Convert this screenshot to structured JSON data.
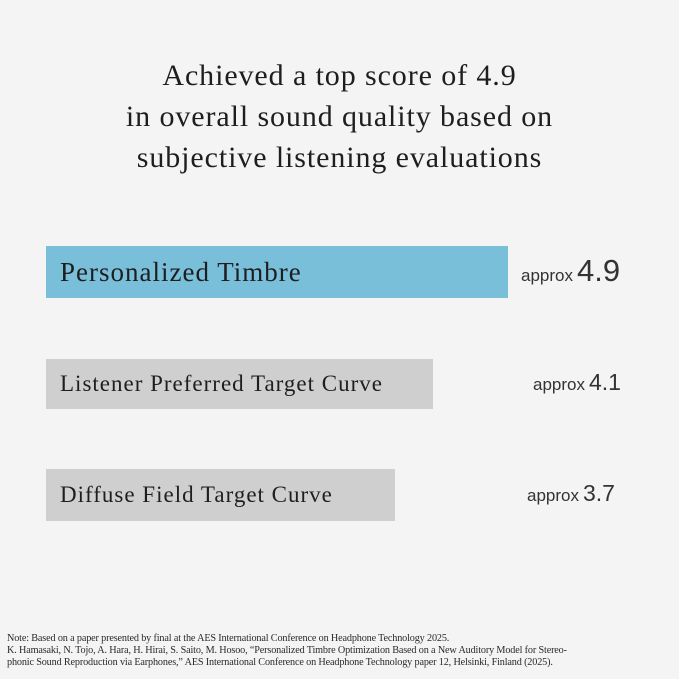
{
  "title_lines": [
    "Achieved a top score of 4.9",
    "in overall sound quality based on",
    "subjective listening evaluations"
  ],
  "chart_data": {
    "type": "bar",
    "orientation": "horizontal",
    "title": "Achieved a top score of 4.9 in overall sound quality based on subjective listening evaluations",
    "categories": [
      "Personalized Timbre",
      "Listener Preferred Target Curve",
      "Diffuse Field Target Curve"
    ],
    "values": [
      4.9,
      4.1,
      3.7
    ],
    "value_prefix": "approx",
    "value_labels": [
      "4.9",
      "4.1",
      "3.7"
    ],
    "bar_colors": [
      "#79bfda",
      "#cfcfcf",
      "#cfcfcf"
    ],
    "grid": false,
    "legend": "none"
  },
  "note_lines": [
    "Note: Based on a paper presented by final at the AES International Conference on Headphone Technology 2025.",
    "K. Hamasaki, N. Tojo, A. Hara, H. Hirai, S. Saito, M. Hosoo, “Personalized Timbre Optimization Based on a New Auditory Model for Stereo-",
    "phonic Sound Reproduction via Earphones,” AES International Conference on Headphone Technology paper 12, Helsinki, Finland (2025)."
  ]
}
